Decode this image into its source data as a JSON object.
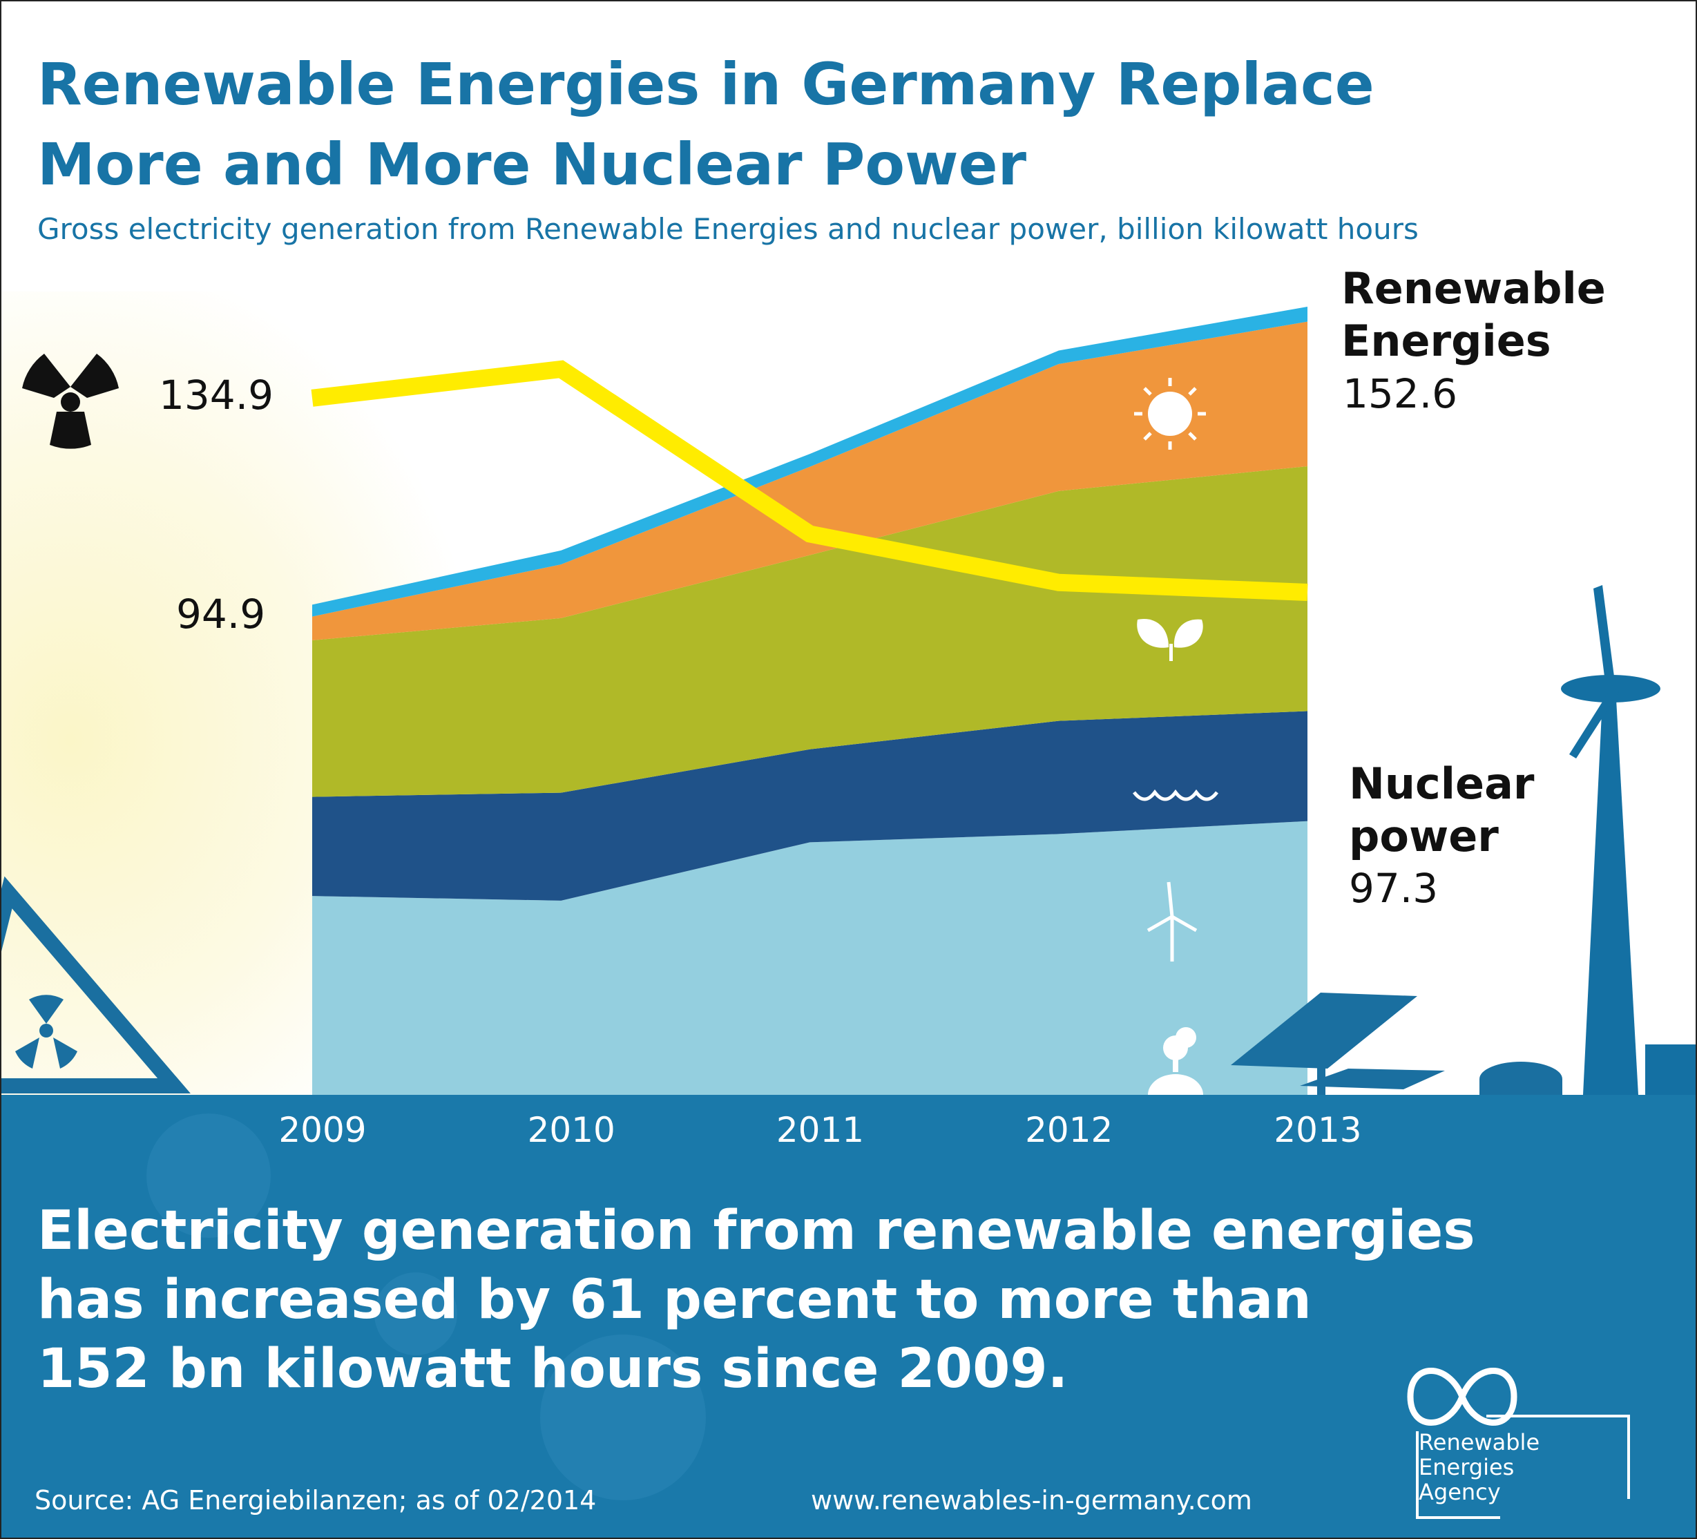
{
  "chart_data": {
    "type": "stacked_area",
    "title": "Renewable Energies in Germany Replace More and More Nuclear Power",
    "subtitle": "Gross electricity generation from Renewable Energies and nuclear power, billion kilowatt hours",
    "categories": [
      "2009",
      "2010",
      "2011",
      "2012",
      "2013"
    ],
    "series": [
      {
        "color": "#94cfdf",
        "values": [
          38.5,
          37.6,
          48.9,
          50.5,
          53.0
        ]
      },
      {
        "color": "#1f5289",
        "values": [
          19.2,
          20.9,
          18.0,
          21.9,
          21.3
        ]
      },
      {
        "color": "#b0b928",
        "values": [
          30.3,
          33.8,
          37.6,
          44.5,
          47.4
        ]
      },
      {
        "color": "#f0963c",
        "values": [
          4.6,
          10.4,
          17.1,
          24.6,
          28.0
        ]
      },
      {
        "color": "#2ab2e4",
        "values": [
          2.3,
          2.7,
          2.5,
          2.6,
          2.9
        ]
      },
      {
        "type": "line",
        "color": "#ffec00",
        "values": [
          134.9,
          140.5,
          108.6,
          99.2,
          97.3
        ]
      }
    ],
    "annotations": [
      {
        "label": "Renewable Energies",
        "start": 94.9,
        "end": 152.6
      },
      {
        "label": "Nuclear power"
      }
    ]
  },
  "headline_lines": [
    "Electricity generation from renewable energies",
    "has increased by 61 percent to more than",
    "152 bn kilowatt hours since 2009."
  ],
  "source": "Source: AG Energiebilanzen; as of 02/2014",
  "url": "www.renewables-in-germany.com",
  "logo": "Renewable Energies Agency"
}
